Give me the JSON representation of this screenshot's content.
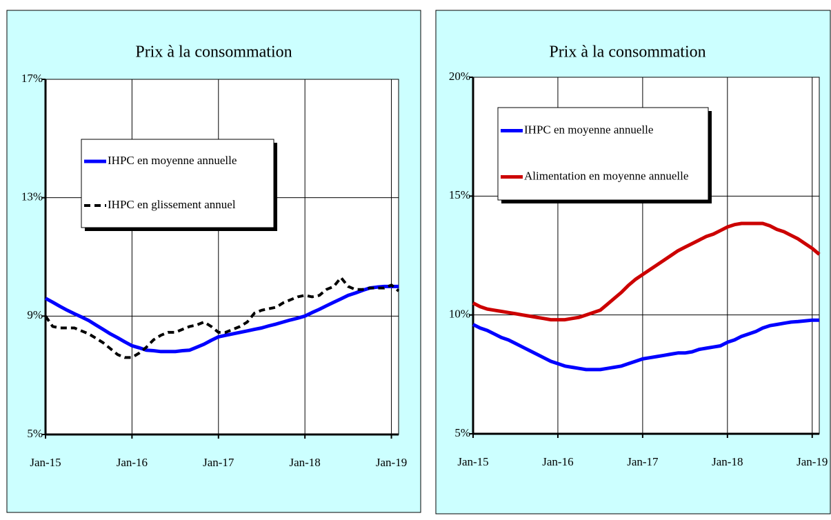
{
  "chart_data": [
    {
      "type": "line",
      "title": "Prix à la consommation",
      "categories": [
        "Jan-15",
        null,
        null,
        null,
        null,
        null,
        null,
        null,
        null,
        null,
        null,
        null,
        "Jan-16",
        null,
        null,
        null,
        null,
        null,
        null,
        null,
        null,
        null,
        null,
        null,
        "Jan-17",
        null,
        null,
        null,
        null,
        null,
        null,
        null,
        null,
        null,
        null,
        null,
        "Jan-18",
        null,
        null,
        null,
        null,
        null,
        null,
        null,
        null,
        null,
        null,
        null,
        "Jan-19",
        null
      ],
      "ylim": [
        5,
        17
      ],
      "yticks": [
        {
          "value": 5,
          "label": "5%"
        },
        {
          "value": 9,
          "label": "9%"
        },
        {
          "value": 13,
          "label": "13%"
        },
        {
          "value": 17,
          "label": "17%"
        }
      ],
      "grid": true,
      "legend": "upper left",
      "series": [
        {
          "name": "IHPC en moyenne annuelle",
          "color": "#0000ff",
          "dash": false,
          "values": [
            9.6,
            9.47,
            9.33,
            9.2,
            9.08,
            8.97,
            8.85,
            8.7,
            8.55,
            8.4,
            8.27,
            8.13,
            8.0,
            7.93,
            7.85,
            7.83,
            7.8,
            7.8,
            7.8,
            7.83,
            7.85,
            7.95,
            8.05,
            8.18,
            8.3,
            8.35,
            8.4,
            8.45,
            8.5,
            8.55,
            8.6,
            8.67,
            8.73,
            8.8,
            8.87,
            8.93,
            9.0,
            9.12,
            9.23,
            9.35,
            9.47,
            9.58,
            9.7,
            9.78,
            9.87,
            9.95,
            9.98,
            10.0,
            10.0,
            10.0
          ]
        },
        {
          "name": "IHPC en glissement annuel",
          "color": "#000000",
          "dash": true,
          "values": [
            9.0,
            8.65,
            8.6,
            8.6,
            8.6,
            8.5,
            8.4,
            8.25,
            8.1,
            7.9,
            7.7,
            7.6,
            7.6,
            7.75,
            7.95,
            8.2,
            8.35,
            8.45,
            8.45,
            8.55,
            8.65,
            8.7,
            8.8,
            8.65,
            8.45,
            8.45,
            8.55,
            8.65,
            8.8,
            9.1,
            9.2,
            9.25,
            9.3,
            9.45,
            9.55,
            9.65,
            9.7,
            9.65,
            9.7,
            9.9,
            10.0,
            10.3,
            10.0,
            9.9,
            9.9,
            9.95,
            9.95,
            9.95,
            10.05,
            9.85
          ]
        }
      ]
    },
    {
      "type": "line",
      "title": "Prix à la consommation",
      "categories": [
        "Jan-15",
        null,
        null,
        null,
        null,
        null,
        null,
        null,
        null,
        null,
        null,
        null,
        "Jan-16",
        null,
        null,
        null,
        null,
        null,
        null,
        null,
        null,
        null,
        null,
        null,
        "Jan-17",
        null,
        null,
        null,
        null,
        null,
        null,
        null,
        null,
        null,
        null,
        null,
        "Jan-18",
        null,
        null,
        null,
        null,
        null,
        null,
        null,
        null,
        null,
        null,
        null,
        "Jan-19",
        null
      ],
      "ylim": [
        5,
        20
      ],
      "yticks": [
        {
          "value": 5,
          "label": "5%"
        },
        {
          "value": 10,
          "label": "10%"
        },
        {
          "value": 15,
          "label": "15%"
        },
        {
          "value": 20,
          "label": "20%"
        }
      ],
      "grid": true,
      "legend": "upper left",
      "series": [
        {
          "name": "IHPC en moyenne annuelle",
          "color": "#0000ff",
          "dash": false,
          "values": [
            9.6,
            9.45,
            9.35,
            9.2,
            9.05,
            8.95,
            8.8,
            8.65,
            8.5,
            8.35,
            8.2,
            8.05,
            7.95,
            7.85,
            7.8,
            7.75,
            7.7,
            7.7,
            7.7,
            7.75,
            7.8,
            7.85,
            7.95,
            8.05,
            8.15,
            8.2,
            8.25,
            8.3,
            8.35,
            8.4,
            8.4,
            8.45,
            8.55,
            8.6,
            8.65,
            8.7,
            8.85,
            8.95,
            9.1,
            9.2,
            9.3,
            9.45,
            9.55,
            9.6,
            9.65,
            9.7,
            9.72,
            9.75,
            9.78,
            9.78
          ]
        },
        {
          "name": "Alimentation en moyenne annuelle",
          "color": "#cc0000",
          "dash": false,
          "values": [
            10.5,
            10.35,
            10.25,
            10.2,
            10.15,
            10.1,
            10.05,
            10.0,
            9.95,
            9.9,
            9.85,
            9.8,
            9.8,
            9.8,
            9.85,
            9.9,
            10.0,
            10.1,
            10.2,
            10.45,
            10.7,
            10.95,
            11.25,
            11.5,
            11.7,
            11.9,
            12.1,
            12.3,
            12.5,
            12.7,
            12.85,
            13.0,
            13.15,
            13.3,
            13.4,
            13.55,
            13.7,
            13.8,
            13.85,
            13.85,
            13.85,
            13.85,
            13.75,
            13.6,
            13.5,
            13.35,
            13.2,
            13.0,
            12.8,
            12.55
          ]
        }
      ]
    }
  ]
}
